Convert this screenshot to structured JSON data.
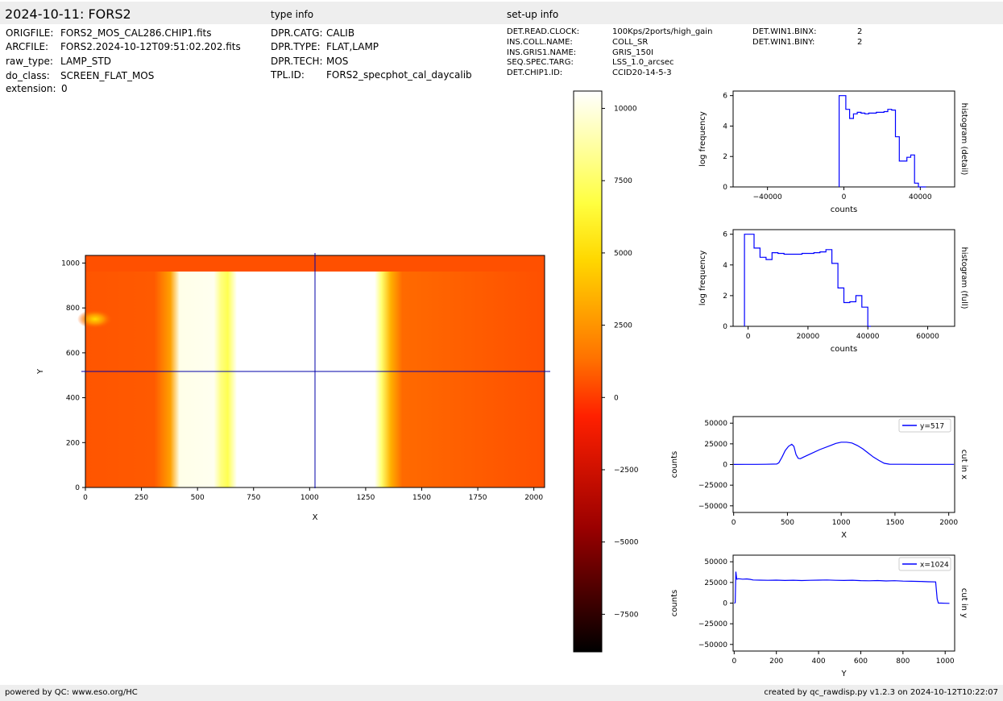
{
  "header": {
    "title": "2024-10-11: FORS2",
    "type_info_title": "type info",
    "setup_info_title": "set-up info"
  },
  "file_info": [
    {
      "key": "ORIGFILE:",
      "value": "FORS2_MOS_CAL286.CHIP1.fits"
    },
    {
      "key": "ARCFILE:",
      "value": "FORS2.2024-10-12T09:51:02.202.fits"
    },
    {
      "key": "raw_type:",
      "value": "LAMP_STD"
    },
    {
      "key": "do_class:",
      "value": "SCREEN_FLAT_MOS"
    },
    {
      "key": "extension:",
      "value": "0"
    }
  ],
  "type_info": [
    {
      "key": "DPR.CATG:",
      "value": "CALIB"
    },
    {
      "key": "DPR.TYPE:",
      "value": "FLAT,LAMP"
    },
    {
      "key": "DPR.TECH:",
      "value": "MOS"
    },
    {
      "key": "TPL.ID:",
      "value": "FORS2_specphot_cal_daycalib"
    }
  ],
  "setup_info": [
    {
      "key": "DET.READ.CLOCK:",
      "value": "100Kps/2ports/high_gain"
    },
    {
      "key": "INS.COLL.NAME:",
      "value": "COLL_SR"
    },
    {
      "key": "INS.GRIS1.NAME:",
      "value": "GRIS_150I"
    },
    {
      "key": "SEQ.SPEC.TARG:",
      "value": "LSS_1.0_arcsec"
    },
    {
      "key": "DET.CHIP1.ID:",
      "value": "CCID20-14-5-3"
    }
  ],
  "setup_info_2": [
    {
      "key": "DET.WIN1.BINX:",
      "value": "2"
    },
    {
      "key": "DET.WIN1.BINY:",
      "value": "2"
    }
  ],
  "footer": {
    "left": "powered by QC: www.eso.org/HC",
    "right": "created by qc_rawdisp.py v1.2.3 on 2024-10-12T10:22:07"
  },
  "chart_data": [
    {
      "type": "heatmap",
      "xlabel": "X",
      "ylabel": "Y",
      "xlim": [
        0,
        2048
      ],
      "ylim": [
        0,
        1034
      ],
      "xticks": [
        "0",
        "250",
        "500",
        "750",
        "1000",
        "1250",
        "1500",
        "1750",
        "2000"
      ],
      "yticks": [
        "0",
        "200",
        "400",
        "600",
        "800",
        "1000"
      ],
      "crosshair": {
        "x": 1024,
        "y": 517
      },
      "colormap": "hot",
      "colors": {
        "low": "#000000",
        "mid_low": "#ff4500",
        "mid": "#ffa500",
        "mid_high": "#ffff00",
        "high": "#ffffff",
        "crosshair": "#0000aa"
      },
      "colorbar": {
        "min": -8800,
        "max": 10600,
        "ticks": [
          "10000",
          "7500",
          "5000",
          "2500",
          "0",
          "−2500",
          "−5000",
          "−7500"
        ]
      }
    },
    {
      "type": "line",
      "xlabel": "counts",
      "ylabel": "log frequency",
      "side_label": "histogram (detail)",
      "xlim": [
        -58000,
        58000
      ],
      "ylim": [
        0,
        6.3
      ],
      "xticks": [
        "−40000",
        "0",
        "40000"
      ],
      "yticks": [
        "0",
        "2",
        "4",
        "6"
      ],
      "color": "#0000ff",
      "x": [
        -2500,
        -2500,
        -500,
        1000,
        3000,
        5000,
        7000,
        9000,
        11000,
        13000,
        15000,
        17000,
        19000,
        21000,
        23000,
        25000,
        27000,
        29000,
        31000,
        33000,
        35000,
        37000,
        39000,
        41000,
        43000
      ],
      "y": [
        0,
        6.0,
        6.0,
        5.1,
        4.5,
        4.8,
        4.9,
        4.85,
        4.8,
        4.85,
        4.85,
        4.9,
        4.9,
        4.95,
        5.1,
        5.05,
        3.3,
        1.7,
        1.7,
        1.95,
        2.1,
        0.25,
        0.0,
        0.0,
        0.0
      ]
    },
    {
      "type": "line",
      "xlabel": "counts",
      "ylabel": "log frequency",
      "side_label": "histogram (full)",
      "xlim": [
        -5000,
        69000
      ],
      "ylim": [
        0,
        6.3
      ],
      "xticks": [
        "0",
        "20000",
        "40000",
        "60000"
      ],
      "yticks": [
        "0",
        "2",
        "4",
        "6"
      ],
      "color": "#0000ff",
      "x": [
        -1200,
        -1200,
        0,
        2000,
        4000,
        6000,
        8000,
        10000,
        12000,
        14000,
        16000,
        18000,
        20000,
        22000,
        24000,
        26000,
        28000,
        30000,
        32000,
        34000,
        36000,
        38000,
        40000,
        41000
      ],
      "y": [
        0,
        6.0,
        6.0,
        5.1,
        4.5,
        4.35,
        4.8,
        4.75,
        4.7,
        4.7,
        4.7,
        4.75,
        4.75,
        4.8,
        4.85,
        5.0,
        4.1,
        2.5,
        1.55,
        1.6,
        2.0,
        1.25,
        0.0,
        0.0
      ]
    },
    {
      "type": "line",
      "xlabel": "X",
      "ylabel": "counts",
      "side_label": "cut in x",
      "legend": "y=517",
      "legend_position": "top-right",
      "xlim": [
        -5,
        2055
      ],
      "ylim": [
        -58000,
        58000
      ],
      "xticks": [
        "0",
        "500",
        "1000",
        "1500",
        "2000"
      ],
      "yticks": [
        "50000",
        "25000",
        "0",
        "−25000",
        "−50000"
      ],
      "color": "#0000ff",
      "x": [
        0,
        100,
        200,
        300,
        400,
        420,
        450,
        480,
        510,
        540,
        560,
        580,
        600,
        620,
        650,
        700,
        800,
        900,
        950,
        1000,
        1050,
        1100,
        1150,
        1200,
        1250,
        1300,
        1350,
        1400,
        1450,
        1500,
        1600,
        1700,
        1800,
        1900,
        2000,
        2048
      ],
      "y": [
        100,
        150,
        200,
        300,
        600,
        2000,
        9000,
        17000,
        22000,
        24500,
        22000,
        12000,
        7500,
        7000,
        9000,
        12000,
        18000,
        23000,
        25500,
        27000,
        27000,
        26000,
        23000,
        19000,
        14000,
        9000,
        5000,
        1500,
        400,
        300,
        250,
        200,
        200,
        200,
        200,
        200
      ]
    },
    {
      "type": "line",
      "xlabel": "Y",
      "ylabel": "counts",
      "side_label": "cut in y",
      "legend": "x=1024",
      "legend_position": "top-right",
      "xlim": [
        -5,
        1045
      ],
      "ylim": [
        -58000,
        58000
      ],
      "xticks": [
        "0",
        "200",
        "400",
        "600",
        "800",
        "1000"
      ],
      "yticks": [
        "50000",
        "25000",
        "0",
        "−25000",
        "−50000"
      ],
      "color": "#0000ff",
      "x": [
        0,
        5,
        8,
        12,
        20,
        40,
        60,
        75,
        90,
        120,
        160,
        200,
        240,
        280,
        320,
        360,
        400,
        440,
        480,
        520,
        560,
        600,
        640,
        680,
        720,
        760,
        800,
        840,
        880,
        920,
        955,
        962,
        968,
        980,
        1000,
        1020
      ],
      "y": [
        0,
        500,
        38000,
        29000,
        29500,
        29000,
        29200,
        28800,
        28000,
        27800,
        27600,
        27800,
        27400,
        27700,
        27300,
        27600,
        27800,
        28000,
        27600,
        27400,
        27700,
        27200,
        27000,
        27300,
        26800,
        27100,
        26600,
        26400,
        26200,
        25800,
        25600,
        5000,
        0,
        0,
        -200,
        -300
      ]
    }
  ]
}
